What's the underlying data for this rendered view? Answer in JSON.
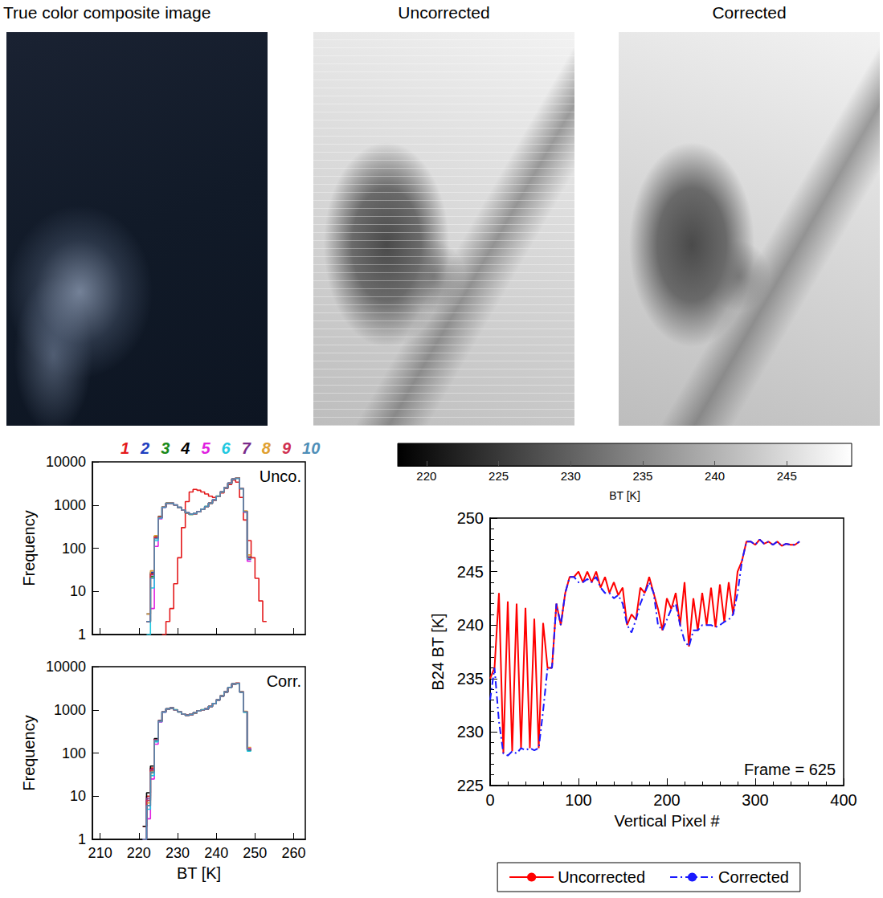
{
  "panels": [
    {
      "title": "True color composite image"
    },
    {
      "title": "Uncorrected"
    },
    {
      "title": "Corrected"
    }
  ],
  "chart_data": [
    {
      "type": "histogram",
      "annotation": "Unco.",
      "ylabel": "Frequency",
      "log": "y",
      "grid": false,
      "legend": "top",
      "tick_labels": "y",
      "xlim": [
        208,
        263
      ],
      "xticks": [
        210,
        220,
        230,
        240,
        250,
        260
      ],
      "ylim": [
        1,
        10000
      ],
      "yticks": [
        1,
        10,
        100,
        1000,
        10000
      ],
      "bins": [
        221,
        222,
        223,
        224,
        225,
        226,
        227,
        228,
        229,
        230,
        231,
        232,
        233,
        234,
        235,
        236,
        237,
        238,
        239,
        240,
        241,
        242,
        243,
        244,
        245,
        246,
        247,
        248,
        249,
        250,
        251,
        252,
        253
      ],
      "series": [
        {
          "name": "1",
          "color": "#e41a1c",
          "values": [
            null,
            null,
            null,
            null,
            null,
            1,
            2,
            4,
            15,
            60,
            300,
            1200,
            2000,
            2300,
            2200,
            2000,
            1800,
            1600,
            1500,
            1600,
            1900,
            2400,
            3000,
            3800,
            3400,
            1500,
            450,
            150,
            60,
            20,
            6,
            2
          ]
        },
        {
          "name": "2",
          "color": "#1f3fbf",
          "values": [
            null,
            3,
            28,
            185,
            520,
            905,
            1100,
            1090,
            1000,
            880,
            760,
            660,
            610,
            630,
            700,
            800,
            920,
            1100,
            1300,
            1600,
            2000,
            2500,
            3200,
            4000,
            4300,
            2400,
            700,
            55,
            null,
            null,
            null,
            null
          ]
        },
        {
          "name": "3",
          "color": "#1a8a1a",
          "values": [
            null,
            2,
            22,
            170,
            510,
            890,
            1110,
            1100,
            1010,
            885,
            765,
            655,
            605,
            625,
            695,
            805,
            925,
            1105,
            1295,
            1610,
            2010,
            2490,
            3180,
            3980,
            4200,
            2420,
            690,
            60,
            null,
            null,
            null,
            null
          ]
        },
        {
          "name": "4",
          "color": "#000000",
          "values": [
            null,
            2,
            26,
            190,
            540,
            910,
            1090,
            1100,
            995,
            875,
            755,
            665,
            615,
            635,
            705,
            795,
            915,
            1095,
            1310,
            1590,
            1990,
            2510,
            3220,
            4020,
            4150,
            2380,
            710,
            62,
            null,
            null,
            null,
            null
          ]
        },
        {
          "name": "5",
          "color": "#e020e0",
          "values": [
            null,
            null,
            4,
            110,
            480,
            880,
            1080,
            1110,
            1005,
            890,
            770,
            665,
            612,
            628,
            698,
            798,
            918,
            1098,
            1302,
            1598,
            2002,
            2498,
            3198,
            3998,
            4250,
            2450,
            680,
            50,
            null,
            null,
            null,
            null
          ]
        },
        {
          "name": "6",
          "color": "#20c8e0",
          "values": [
            null,
            1,
            12,
            150,
            500,
            890,
            1095,
            1105,
            1000,
            880,
            760,
            660,
            608,
            632,
            702,
            802,
            922,
            1102,
            1298,
            1602,
            2000,
            2502,
            3202,
            4002,
            4180,
            2410,
            705,
            58,
            null,
            null,
            null,
            null
          ]
        },
        {
          "name": "7",
          "color": "#7a2a8a",
          "values": [
            null,
            2,
            24,
            175,
            515,
            900,
            1100,
            1095,
            1000,
            882,
            762,
            662,
            610,
            630,
            700,
            800,
            920,
            1100,
            1300,
            1600,
            2000,
            2500,
            3200,
            4000,
            4220,
            2400,
            700,
            60,
            null,
            null,
            null,
            null
          ]
        },
        {
          "name": "8",
          "color": "#e0a030",
          "values": [
            null,
            3,
            30,
            195,
            530,
            915,
            1105,
            1100,
            1002,
            878,
            758,
            658,
            606,
            626,
            696,
            796,
            916,
            1096,
            1296,
            1596,
            1996,
            2496,
            3196,
            3996,
            4280,
            2440,
            730,
            70,
            null,
            null,
            null,
            null
          ]
        },
        {
          "name": "9",
          "color": "#d03050",
          "values": [
            null,
            2,
            25,
            180,
            520,
            900,
            1100,
            1100,
            1000,
            880,
            760,
            660,
            610,
            630,
            700,
            800,
            920,
            1100,
            1300,
            1600,
            2000,
            2500,
            3200,
            4000,
            4200,
            2400,
            700,
            60,
            null,
            null,
            null,
            null
          ]
        },
        {
          "name": "10",
          "color": "#4f8fb8",
          "values": [
            null,
            2,
            20,
            165,
            505,
            895,
            1100,
            1100,
            998,
            884,
            764,
            664,
            614,
            634,
            704,
            804,
            924,
            1104,
            1304,
            1604,
            2004,
            2504,
            3204,
            4004,
            4210,
            2390,
            695,
            57,
            null,
            null,
            null,
            null
          ]
        }
      ]
    },
    {
      "type": "histogram",
      "annotation": "Corr.",
      "xlabel": "BT [K]",
      "ylabel": "Frequency",
      "log": "y",
      "grid": false,
      "xlim": [
        208,
        263
      ],
      "xticks": [
        210,
        220,
        230,
        240,
        250,
        260
      ],
      "ylim": [
        1,
        10000
      ],
      "yticks": [
        1,
        10,
        100,
        1000,
        10000
      ],
      "bins": [
        221,
        222,
        223,
        224,
        225,
        226,
        227,
        228,
        229,
        230,
        231,
        232,
        233,
        234,
        235,
        236,
        237,
        238,
        239,
        240,
        241,
        242,
        243,
        244,
        245,
        246,
        247,
        248,
        249,
        250,
        251,
        252,
        253
      ],
      "series": [
        {
          "name": "1",
          "color": "#e41a1c",
          "values": [
            2,
            10,
            45,
            210,
            560,
            905,
            1050,
            1100,
            1000,
            900,
            800,
            750,
            780,
            850,
            950,
            1000,
            1050,
            1200,
            1400,
            1700,
            2100,
            2600,
            3300,
            4000,
            4100,
            2600,
            900,
            120,
            null,
            null,
            null,
            null
          ]
        },
        {
          "name": "2",
          "color": "#1f3fbf",
          "values": [
            1,
            8,
            40,
            200,
            550,
            900,
            1050,
            1100,
            1000,
            900,
            800,
            750,
            780,
            850,
            950,
            1000,
            1050,
            1200,
            1400,
            1700,
            2100,
            2600,
            3300,
            4000,
            4150,
            2620,
            910,
            125,
            null,
            null,
            null,
            null
          ]
        },
        {
          "name": "3",
          "color": "#1a8a1a",
          "values": [
            null,
            6,
            35,
            190,
            540,
            895,
            1055,
            1095,
            1005,
            905,
            795,
            745,
            785,
            855,
            945,
            1005,
            1045,
            1205,
            1395,
            1705,
            2095,
            2605,
            3295,
            4005,
            4080,
            2590,
            890,
            115,
            null,
            null,
            null,
            null
          ]
        },
        {
          "name": "4",
          "color": "#000000",
          "values": [
            2,
            12,
            50,
            215,
            560,
            910,
            1045,
            1105,
            995,
            895,
            805,
            755,
            775,
            845,
            955,
            995,
            1055,
            1195,
            1405,
            1695,
            2105,
            2595,
            3305,
            3995,
            4120,
            2610,
            905,
            118,
            null,
            null,
            null,
            null
          ]
        },
        {
          "name": "5",
          "color": "#e020e0",
          "values": [
            null,
            3,
            25,
            160,
            520,
            880,
            1040,
            1100,
            1000,
            900,
            800,
            750,
            780,
            850,
            950,
            1000,
            1050,
            1200,
            1400,
            1700,
            2100,
            2600,
            3300,
            4000,
            4200,
            2650,
            920,
            130,
            null,
            null,
            null,
            null
          ]
        },
        {
          "name": "6",
          "color": "#20c8e0",
          "values": [
            1,
            5,
            30,
            180,
            530,
            890,
            1050,
            1100,
            1000,
            900,
            800,
            750,
            780,
            850,
            950,
            1000,
            1050,
            1200,
            1400,
            1700,
            2100,
            2600,
            3300,
            4000,
            4100,
            2580,
            880,
            110,
            null,
            null,
            null,
            null
          ]
        },
        {
          "name": "7",
          "color": "#7a2a8a",
          "values": [
            1,
            9,
            42,
            205,
            555,
            902,
            1052,
            1098,
            1002,
            902,
            798,
            752,
            778,
            852,
            948,
            1002,
            1048,
            1202,
            1398,
            1702,
            2098,
            2602,
            3298,
            4002,
            4110,
            2600,
            900,
            120,
            null,
            null,
            null,
            null
          ]
        },
        {
          "name": "8",
          "color": "#e0a030",
          "values": [
            null,
            7,
            38,
            198,
            548,
            898,
            1048,
            1102,
            998,
            898,
            802,
            748,
            782,
            848,
            952,
            998,
            1052,
            1198,
            1402,
            1698,
            2102,
            2598,
            3302,
            3998,
            4180,
            2640,
            930,
            135,
            null,
            null,
            null,
            null
          ]
        },
        {
          "name": "9",
          "color": "#d03050",
          "values": [
            1,
            8,
            40,
            200,
            550,
            900,
            1050,
            1100,
            1000,
            900,
            800,
            750,
            780,
            850,
            950,
            1000,
            1050,
            1200,
            1400,
            1700,
            2100,
            2600,
            3300,
            4000,
            4100,
            2600,
            900,
            120,
            null,
            null,
            null,
            null
          ]
        },
        {
          "name": "10",
          "color": "#4f8fb8",
          "values": [
            1,
            6,
            36,
            195,
            545,
            895,
            1050,
            1100,
            1000,
            900,
            800,
            750,
            780,
            850,
            950,
            1000,
            1050,
            1200,
            1400,
            1700,
            2100,
            2600,
            3300,
            4000,
            4090,
            2590,
            895,
            118,
            null,
            null,
            null,
            null
          ]
        }
      ]
    },
    {
      "type": "colorbar",
      "xlabel": "BT [K]",
      "xlim": [
        218,
        249.5
      ],
      "xticks": [
        220,
        225,
        230,
        235,
        240,
        245
      ],
      "colors": [
        "#000000",
        "#ffffff"
      ]
    },
    {
      "type": "line",
      "xlabel": "Vertical Pixel #",
      "ylabel": "B24 BT [K]",
      "annotation": "Frame = 625",
      "grid": false,
      "legend": "bottom",
      "xlim": [
        0,
        400
      ],
      "xticks": [
        0,
        100,
        200,
        300,
        400
      ],
      "ylim": [
        225,
        250
      ],
      "yticks": [
        225,
        230,
        235,
        240,
        245,
        250
      ],
      "x": [
        0,
        5,
        10,
        15,
        20,
        25,
        30,
        35,
        40,
        45,
        50,
        55,
        60,
        65,
        70,
        75,
        80,
        85,
        90,
        95,
        100,
        105,
        110,
        115,
        120,
        125,
        130,
        135,
        140,
        145,
        150,
        155,
        160,
        165,
        170,
        175,
        180,
        185,
        190,
        195,
        200,
        205,
        210,
        215,
        220,
        225,
        230,
        235,
        240,
        245,
        250,
        255,
        260,
        265,
        270,
        275,
        280,
        285,
        290,
        295,
        300,
        305,
        310,
        315,
        320,
        325,
        330,
        335,
        340,
        345,
        350
      ],
      "series": [
        {
          "name": "Uncorrected",
          "color": "#ff0000",
          "line_style": "solid",
          "values": [
            235,
            236,
            243,
            228,
            242.2,
            228.2,
            242,
            228.5,
            241.6,
            228.5,
            240.6,
            228.5,
            240.2,
            236,
            236,
            242,
            240,
            243,
            244.5,
            244.5,
            245,
            244,
            245,
            244,
            245,
            243.5,
            244.5,
            243,
            244,
            242.8,
            243.5,
            240,
            241,
            240.5,
            243.5,
            243,
            244.5,
            243,
            241.5,
            239.5,
            242.5,
            241.5,
            243,
            240,
            244,
            238,
            242.5,
            239.5,
            243,
            240,
            243.5,
            239.8,
            243.8,
            240.3,
            244,
            241,
            245,
            246,
            247.8,
            247.8,
            247.5,
            248,
            247.6,
            247.8,
            247.5,
            247.8,
            247.4,
            247.6,
            247.5,
            247.5,
            247.8
          ]
        },
        {
          "name": "Corrected",
          "color": "#1a1aff",
          "line_style": "dashdot",
          "values": [
            233,
            236,
            231,
            228,
            227.8,
            228.2,
            228,
            228.5,
            228.3,
            228.5,
            228.3,
            228.5,
            232,
            236,
            236,
            242,
            240,
            243,
            244.5,
            244.5,
            244,
            244,
            244.3,
            244,
            244.5,
            243.5,
            243,
            243,
            242.5,
            242.8,
            242,
            240,
            239.3,
            240.5,
            242,
            243,
            244,
            243,
            240,
            239.5,
            240.5,
            241.5,
            242,
            240,
            238.5,
            238,
            239.5,
            239.5,
            240,
            240,
            240,
            239.8,
            240,
            240.3,
            240.5,
            241,
            243,
            246,
            247.8,
            247.8,
            247.5,
            248,
            247.6,
            247.8,
            247.5,
            247.8,
            247.4,
            247.6,
            247.5,
            247.5,
            247.8
          ]
        }
      ]
    }
  ]
}
